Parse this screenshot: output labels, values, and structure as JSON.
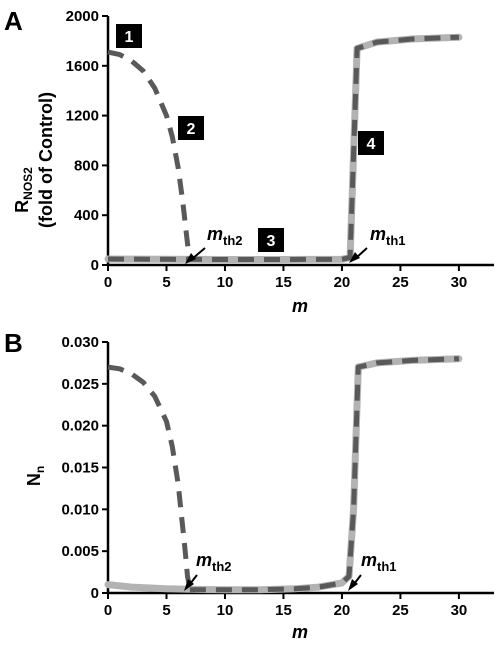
{
  "panels": [
    {
      "letter": "A",
      "ylabel_main": "R",
      "ylabel_sub": "NOS2",
      "ylabel_line2": "(fold of Control)",
      "xlabel": "m"
    },
    {
      "letter": "B",
      "ylabel_main": "N",
      "ylabel_sub": "n",
      "ylabel_line2": "",
      "xlabel": "m"
    }
  ],
  "annotations": {
    "badges": [
      "1",
      "2",
      "3",
      "4"
    ],
    "mth2_main": "m",
    "mth2_sub": "th2",
    "mth1_main": "m",
    "mth1_sub": "th1"
  },
  "colors": {
    "solid_series": "#b3b3b3",
    "dashed_series": "#595959",
    "axis": "#000000",
    "badge": "#000000"
  },
  "chart_data": [
    {
      "type": "line",
      "title": "",
      "xlabel": "m",
      "ylabel": "RNOS2 (fold of Control)",
      "xlim": [
        0,
        33
      ],
      "ylim": [
        0,
        2000
      ],
      "xticks": [
        0,
        5,
        10,
        15,
        20,
        25,
        30
      ],
      "yticks": [
        0,
        400,
        800,
        1200,
        1600,
        2000
      ],
      "xtick_labels": [
        "0",
        "5",
        "10",
        "15",
        "20",
        "25",
        "30"
      ],
      "ytick_labels": [
        "0",
        "400",
        "800",
        "1200",
        "1600",
        "2000"
      ],
      "grid": false,
      "series": [
        {
          "style": "solid-thick-light",
          "x": [
            0,
            2,
            5,
            10,
            15,
            20,
            20.7,
            21.0,
            21.3,
            23,
            26,
            30
          ],
          "y": [
            48,
            47,
            46,
            44,
            44,
            46,
            60,
            900,
            1740,
            1790,
            1815,
            1830
          ]
        },
        {
          "style": "dashed-dark-upper",
          "x": [
            0,
            1,
            2,
            3,
            4,
            5,
            5.5,
            6.0,
            6.4,
            6.7,
            6.9,
            7.0
          ],
          "y": [
            1710,
            1690,
            1640,
            1560,
            1420,
            1200,
            1030,
            780,
            500,
            250,
            90,
            50
          ]
        },
        {
          "style": "dashed-dark-lower",
          "x": [
            0,
            5,
            10,
            15,
            20,
            20.7,
            21.0,
            21.3,
            23,
            26,
            30
          ],
          "y": [
            48,
            46,
            44,
            44,
            46,
            60,
            900,
            1740,
            1790,
            1815,
            1830
          ]
        }
      ],
      "annotations": [
        {
          "label": "1",
          "x": 0.2,
          "y": 1710
        },
        {
          "label": "2",
          "x": 6.0,
          "y": 1050
        },
        {
          "label": "3",
          "x": 13.5,
          "y": 48
        },
        {
          "label": "4",
          "x": 21.0,
          "y": 900
        },
        {
          "label": "mth2",
          "x": 6.7,
          "y": 48
        },
        {
          "label": "mth1",
          "x": 21.0,
          "y": 48
        }
      ]
    },
    {
      "type": "line",
      "title": "",
      "xlabel": "m",
      "ylabel": "Nn",
      "xlim": [
        0,
        33
      ],
      "ylim": [
        0,
        0.03
      ],
      "xticks": [
        0,
        5,
        10,
        15,
        20,
        25,
        30
      ],
      "yticks": [
        0,
        0.005,
        0.01,
        0.015,
        0.02,
        0.025,
        0.03
      ],
      "xtick_labels": [
        "0",
        "5",
        "10",
        "15",
        "20",
        "25",
        "30"
      ],
      "ytick_labels": [
        "0",
        "0.005",
        "0.010",
        "0.015",
        "0.020",
        "0.025",
        "0.030"
      ],
      "grid": false,
      "series": [
        {
          "style": "solid-thick-light",
          "x": [
            0,
            2,
            5,
            8,
            10,
            13,
            16,
            18,
            20,
            20.6,
            21.0,
            21.4,
            23,
            26,
            30
          ],
          "y": [
            0.001,
            0.0007,
            0.0005,
            0.00042,
            0.0004,
            0.0004,
            0.0005,
            0.0007,
            0.0012,
            0.002,
            0.01,
            0.027,
            0.0275,
            0.0278,
            0.028
          ]
        },
        {
          "style": "dashed-dark-upper",
          "x": [
            0,
            1,
            2,
            3,
            4,
            5,
            5.5,
            6.0,
            6.3,
            6.6,
            6.8,
            7.0
          ],
          "y": [
            0.027,
            0.0268,
            0.0262,
            0.0252,
            0.0235,
            0.0205,
            0.0175,
            0.013,
            0.009,
            0.005,
            0.002,
            0.0005
          ]
        },
        {
          "style": "dashed-dark-lower",
          "x": [
            7,
            10,
            13,
            16,
            18,
            20,
            20.6,
            21.0,
            21.4,
            23,
            26,
            30
          ],
          "y": [
            0.0004,
            0.0004,
            0.0004,
            0.0005,
            0.0007,
            0.0012,
            0.002,
            0.01,
            0.027,
            0.0275,
            0.0278,
            0.028
          ]
        }
      ],
      "annotations": [
        {
          "label": "mth2",
          "x": 6.7,
          "y": 0.0004
        },
        {
          "label": "mth1",
          "x": 21.0,
          "y": 0.0012
        }
      ]
    }
  ]
}
